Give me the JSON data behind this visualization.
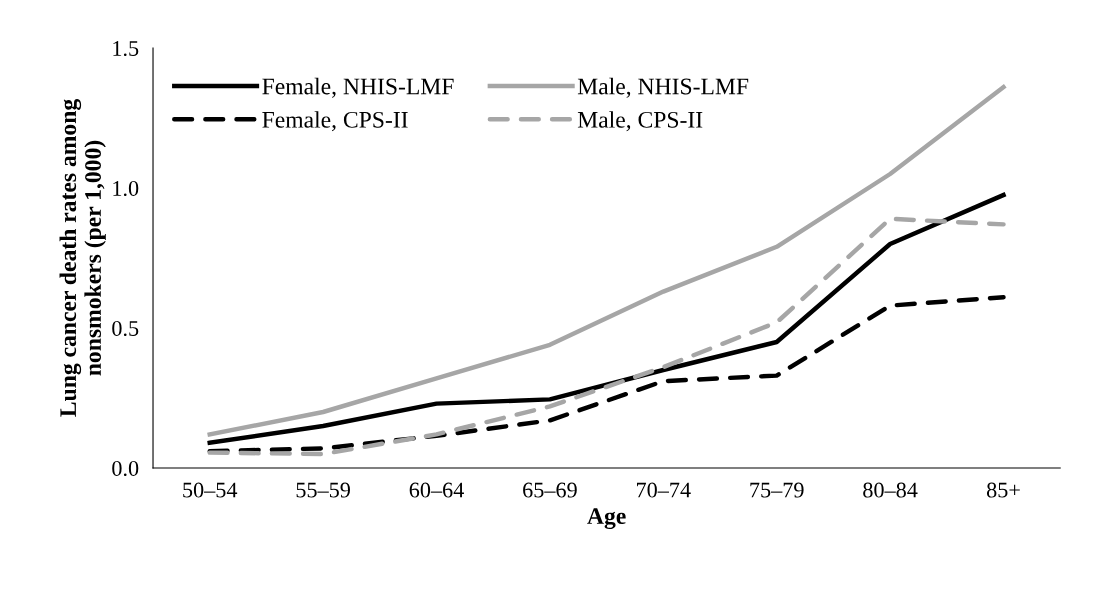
{
  "chart_data": {
    "type": "line",
    "xlabel": "Age",
    "ylabel": "Lung cancer death rates among\nnonsmokers (per 1,000)",
    "categories": [
      "50–54",
      "55–59",
      "60–64",
      "65–69",
      "70–74",
      "75–79",
      "80–84",
      "85+"
    ],
    "series": [
      {
        "name": "Female, NHIS-LMF",
        "color": "#000000",
        "line_style": "solid",
        "values": [
          0.09,
          0.15,
          0.23,
          0.245,
          0.35,
          0.45,
          0.8,
          0.975
        ]
      },
      {
        "name": "Female, CPS-II",
        "color": "#000000",
        "line_style": "dashed",
        "values": [
          0.06,
          0.07,
          0.115,
          0.17,
          0.31,
          0.33,
          0.58,
          0.61
        ]
      },
      {
        "name": "Male, NHIS-LMF",
        "color": "#a6a6a6",
        "line_style": "solid",
        "values": [
          0.12,
          0.2,
          0.32,
          0.44,
          0.63,
          0.79,
          1.05,
          1.36
        ]
      },
      {
        "name": "Male, CPS-II",
        "color": "#a6a6a6",
        "line_style": "dashed",
        "values": [
          0.055,
          0.05,
          0.12,
          0.22,
          0.36,
          0.52,
          0.89,
          0.87
        ]
      }
    ],
    "ylim": [
      0,
      1.5
    ],
    "yticks": [
      {
        "value": 0,
        "label": "0.0"
      },
      {
        "value": 0.5,
        "label": "0.5"
      },
      {
        "value": 1.0,
        "label": "1.0"
      },
      {
        "value": 1.5,
        "label": "1.5"
      }
    ],
    "grid": false,
    "legend": "top left",
    "marker": "none"
  }
}
